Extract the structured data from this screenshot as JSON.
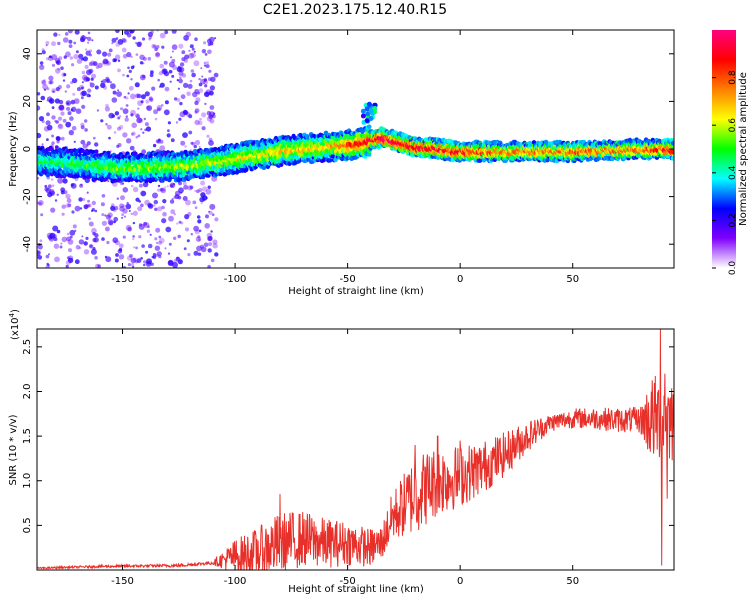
{
  "figure": {
    "title": "C2E1.2023.175.12.40.R15"
  },
  "chart_data": [
    {
      "type": "heatmap",
      "xlabel": "Height of straight line (km)",
      "ylabel": "Frequency (Hz)",
      "xlim": [
        -188,
        95
      ],
      "ylim": [
        -50,
        50
      ],
      "x_ticks": [
        -150,
        -100,
        -50,
        0,
        50
      ],
      "y_ticks": [
        -40,
        -20,
        0,
        20,
        40
      ],
      "colorbar": {
        "label": "Normalized spectral amplitude",
        "range": [
          0,
          1
        ],
        "ticks": [
          "0.0",
          "0.2",
          "0.4",
          "0.6",
          "0.8"
        ],
        "colors": [
          "#ffffff",
          "#7f00ff",
          "#0000ff",
          "#00ffff",
          "#00ff00",
          "#ffff00",
          "#ff7f00",
          "#ff0000",
          "#ff0080"
        ]
      },
      "ridge": {
        "description_points": [
          [
            -185,
            -5
          ],
          [
            -150,
            -8
          ],
          [
            -120,
            -7
          ],
          [
            -100,
            -4
          ],
          [
            -80,
            -1
          ],
          [
            -60,
            1
          ],
          [
            -45,
            2
          ],
          [
            -35,
            5
          ],
          [
            -28,
            3
          ],
          [
            -20,
            1
          ],
          [
            -10,
            0
          ],
          [
            0,
            -1
          ],
          [
            20,
            -1
          ],
          [
            50,
            -1
          ],
          [
            80,
            0
          ],
          [
            95,
            0
          ]
        ],
        "peak_amplitude_points": [
          [
            -185,
            0.35
          ],
          [
            -150,
            0.45
          ],
          [
            -120,
            0.5
          ],
          [
            -100,
            0.55
          ],
          [
            -80,
            0.6
          ],
          [
            -60,
            0.6
          ],
          [
            -45,
            0.85
          ],
          [
            -35,
            0.95
          ],
          [
            -28,
            0.9
          ],
          [
            -20,
            0.85
          ],
          [
            -10,
            0.9
          ],
          [
            0,
            0.85
          ],
          [
            20,
            0.7
          ],
          [
            50,
            0.75
          ],
          [
            80,
            0.7
          ],
          [
            95,
            0.9
          ]
        ]
      },
      "secondary_blob": {
        "x": -40,
        "y": 15,
        "amplitude": 0.3
      }
    },
    {
      "type": "line",
      "xlabel": "Height of straight line (km)",
      "ylabel": "SNR (10 * v/v)",
      "y_multiplier": "(x10",
      "y_multiplier_exp": "4",
      "y_multiplier_close": ")",
      "xlim": [
        -188,
        95
      ],
      "ylim": [
        0,
        2.7
      ],
      "x_ticks": [
        -150,
        -100,
        -50,
        0,
        50
      ],
      "y_ticks": [
        0.5,
        1.0,
        1.5,
        2.0,
        2.5
      ],
      "y_tick_labels": [
        "0.5",
        "1.0",
        "1.5",
        "2.0",
        "2.5"
      ],
      "color": "#e8302a",
      "series": [
        {
          "trend": [
            [
              -188,
              0.02
            ],
            [
              -160,
              0.04
            ],
            [
              -125,
              0.05
            ],
            [
              -110,
              0.08
            ],
            [
              -100,
              0.15
            ],
            [
              -90,
              0.2
            ],
            [
              -80,
              0.3
            ],
            [
              -70,
              0.35
            ],
            [
              -60,
              0.3
            ],
            [
              -50,
              0.3
            ],
            [
              -40,
              0.25
            ],
            [
              -35,
              0.3
            ],
            [
              -30,
              0.6
            ],
            [
              -20,
              0.85
            ],
            [
              -10,
              1.0
            ],
            [
              0,
              1.05
            ],
            [
              10,
              1.15
            ],
            [
              20,
              1.3
            ],
            [
              30,
              1.5
            ],
            [
              40,
              1.65
            ],
            [
              50,
              1.7
            ],
            [
              60,
              1.7
            ],
            [
              70,
              1.68
            ],
            [
              80,
              1.68
            ],
            [
              90,
              1.7
            ],
            [
              95,
              1.7
            ]
          ],
          "noise_amplitude": [
            [
              -188,
              0.01
            ],
            [
              -110,
              0.02
            ],
            [
              -100,
              0.2
            ],
            [
              -80,
              0.35
            ],
            [
              -50,
              0.25
            ],
            [
              -35,
              0.2
            ],
            [
              -20,
              0.45
            ],
            [
              0,
              0.35
            ],
            [
              20,
              0.25
            ],
            [
              40,
              0.1
            ],
            [
              80,
              0.15
            ],
            [
              85,
              0.5
            ],
            [
              95,
              0.5
            ]
          ],
          "spikes": [
            [
              -80,
              0.85
            ],
            [
              -20,
              1.4
            ],
            [
              -10,
              1.5
            ],
            [
              0,
              1.45
            ],
            [
              89,
              2.7
            ],
            [
              89.5,
              0.05
            ],
            [
              91,
              2.2
            ],
            [
              92,
              0.8
            ]
          ]
        }
      ]
    }
  ]
}
